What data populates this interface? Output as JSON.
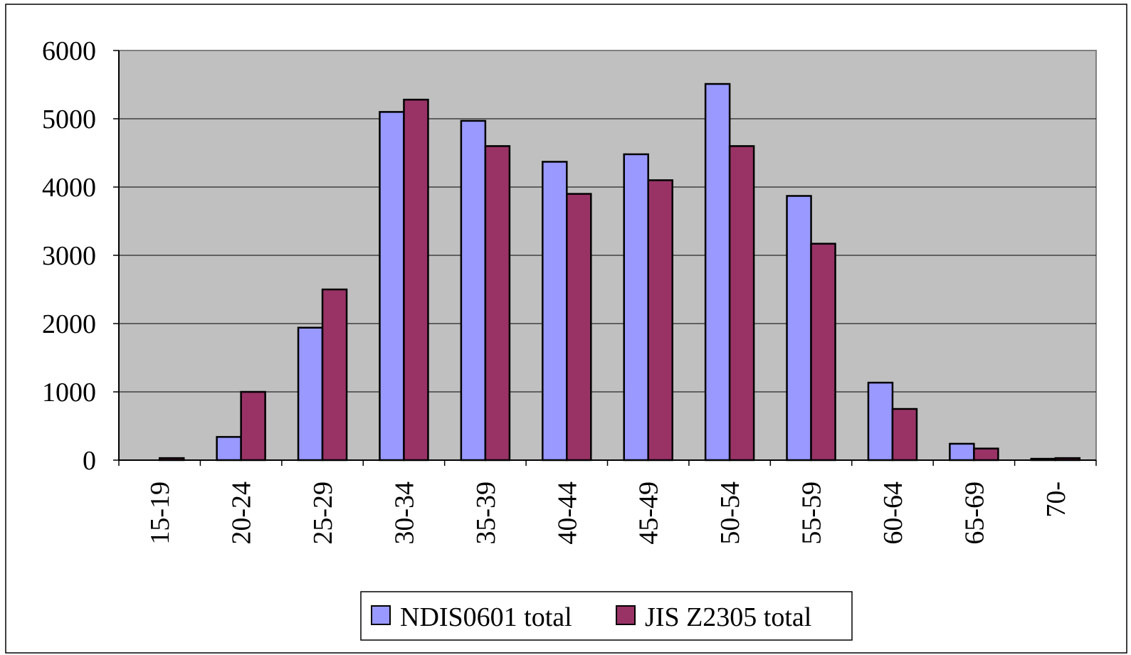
{
  "chart_data": {
    "type": "bar",
    "categories": [
      "15-19",
      "20-24",
      "25-29",
      "30-34",
      "35-39",
      "40-44",
      "45-49",
      "50-54",
      "55-59",
      "60-64",
      "65-69",
      "70-"
    ],
    "series": [
      {
        "name": "NDIS0601 total",
        "color": "#9999ff",
        "values": [
          0,
          340,
          1940,
          5100,
          4970,
          4370,
          4480,
          5510,
          3870,
          1135,
          240,
          20
        ]
      },
      {
        "name": "JIS Z2305 total",
        "color": "#993366",
        "values": [
          30,
          1000,
          2500,
          5280,
          4600,
          3900,
          4100,
          4600,
          3170,
          750,
          170,
          30
        ]
      }
    ],
    "ylim": [
      0,
      6000
    ],
    "yticks": [
      0,
      1000,
      2000,
      3000,
      4000,
      5000,
      6000
    ],
    "grid": true,
    "legend": "bottom"
  }
}
